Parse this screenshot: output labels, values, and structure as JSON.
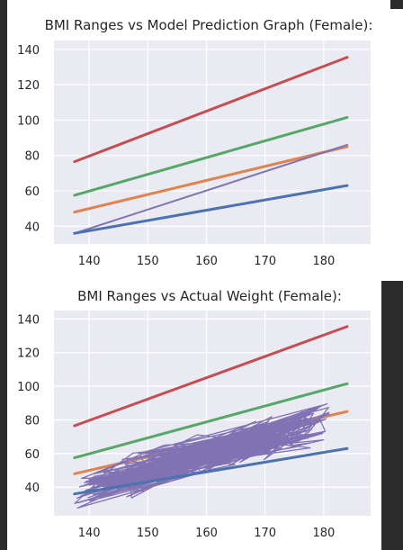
{
  "charts": [
    {
      "id": "chart1",
      "title": "BMI Ranges vs Model Prediction Graph (Female):",
      "type": "line",
      "xlim": [
        134,
        188
      ],
      "ylim": [
        30,
        145
      ],
      "x_ticks": [
        140,
        150,
        160,
        170,
        180
      ],
      "y_ticks": [
        40,
        60,
        80,
        100,
        120,
        140
      ],
      "background": "#eaeaf2",
      "grid": true,
      "series": [
        {
          "color": "#c44e52",
          "width": 3,
          "x": [
            137.5,
            184
          ],
          "y": [
            76.5,
            135.5
          ]
        },
        {
          "color": "#55a868",
          "width": 3,
          "x": [
            137.5,
            184
          ],
          "y": [
            57.5,
            101.5
          ]
        },
        {
          "color": "#dd8452",
          "width": 3,
          "x": [
            137.5,
            184
          ],
          "y": [
            48,
            85
          ]
        },
        {
          "color": "#8172b3",
          "width": 2,
          "x": [
            137.5,
            184
          ],
          "y": [
            36,
            86
          ]
        },
        {
          "color": "#4c72b0",
          "width": 3,
          "x": [
            137.5,
            184
          ],
          "y": [
            36,
            63
          ]
        }
      ]
    },
    {
      "id": "chart2",
      "title": "BMI Ranges vs Actual Weight (Female):",
      "type": "line",
      "xlim": [
        134,
        188
      ],
      "ylim": [
        23,
        145
      ],
      "x_ticks": [
        140,
        150,
        160,
        170,
        180
      ],
      "y_ticks": [
        40,
        60,
        80,
        100,
        120,
        140
      ],
      "background": "#eaeaf2",
      "grid": true,
      "series": [
        {
          "color": "#c44e52",
          "width": 3,
          "x": [
            137.5,
            184
          ],
          "y": [
            76.5,
            135.5
          ]
        },
        {
          "color": "#55a868",
          "width": 3,
          "x": [
            137.5,
            184
          ],
          "y": [
            57.5,
            101.5
          ]
        },
        {
          "color": "#dd8452",
          "width": 3,
          "x": [
            137.5,
            184
          ],
          "y": [
            48,
            85
          ]
        },
        {
          "color": "#4c72b0",
          "width": 3,
          "x": [
            137.5,
            184
          ],
          "y": [
            36,
            63
          ]
        }
      ],
      "scatter_series": {
        "color": "#8172b3",
        "x_range": [
          137.5,
          181
        ],
        "center_start": 37,
        "center_end": 80,
        "spread": 14
      }
    }
  ]
}
